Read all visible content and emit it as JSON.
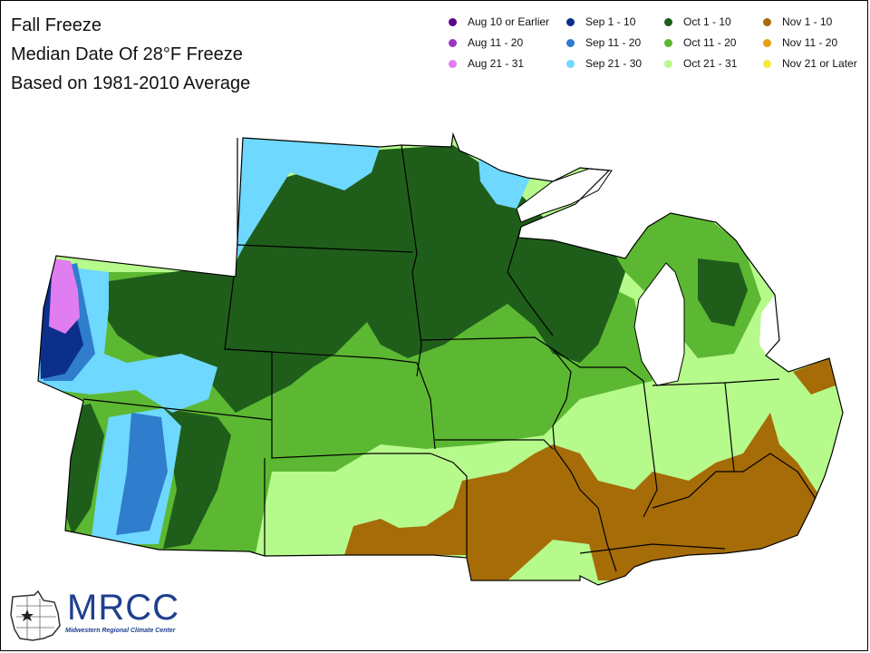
{
  "header": {
    "title": "Fall Freeze",
    "subtitle": "Median Date Of 28°F Freeze",
    "basis": "Based on 1981-2010 Average"
  },
  "legend": [
    {
      "label": "Aug 10 or Earlier",
      "color": "#5a0a8c"
    },
    {
      "label": "Aug 11 - 20",
      "color": "#9b34c4"
    },
    {
      "label": "Aug 21 - 31",
      "color": "#e07df0"
    },
    {
      "label": "Sep 1 - 10",
      "color": "#0c2f8c"
    },
    {
      "label": "Sep 11 - 20",
      "color": "#2f7dcc"
    },
    {
      "label": "Sep 21 - 30",
      "color": "#6fd8ff"
    },
    {
      "label": "Oct 1 - 10",
      "color": "#1f5e1a"
    },
    {
      "label": "Oct 11 - 20",
      "color": "#5cb832"
    },
    {
      "label": "Oct 21 - 31",
      "color": "#b6fa8c"
    },
    {
      "label": "Nov 1 - 10",
      "color": "#a66c08"
    },
    {
      "label": "Nov 11 - 20",
      "color": "#e6a014"
    },
    {
      "label": "Nov 21 or Later",
      "color": "#f5e642"
    }
  ],
  "logo": {
    "name": "MRCC",
    "full_name": "Midwestern Regional Climate Center",
    "icon": "midwest-map-icon"
  }
}
